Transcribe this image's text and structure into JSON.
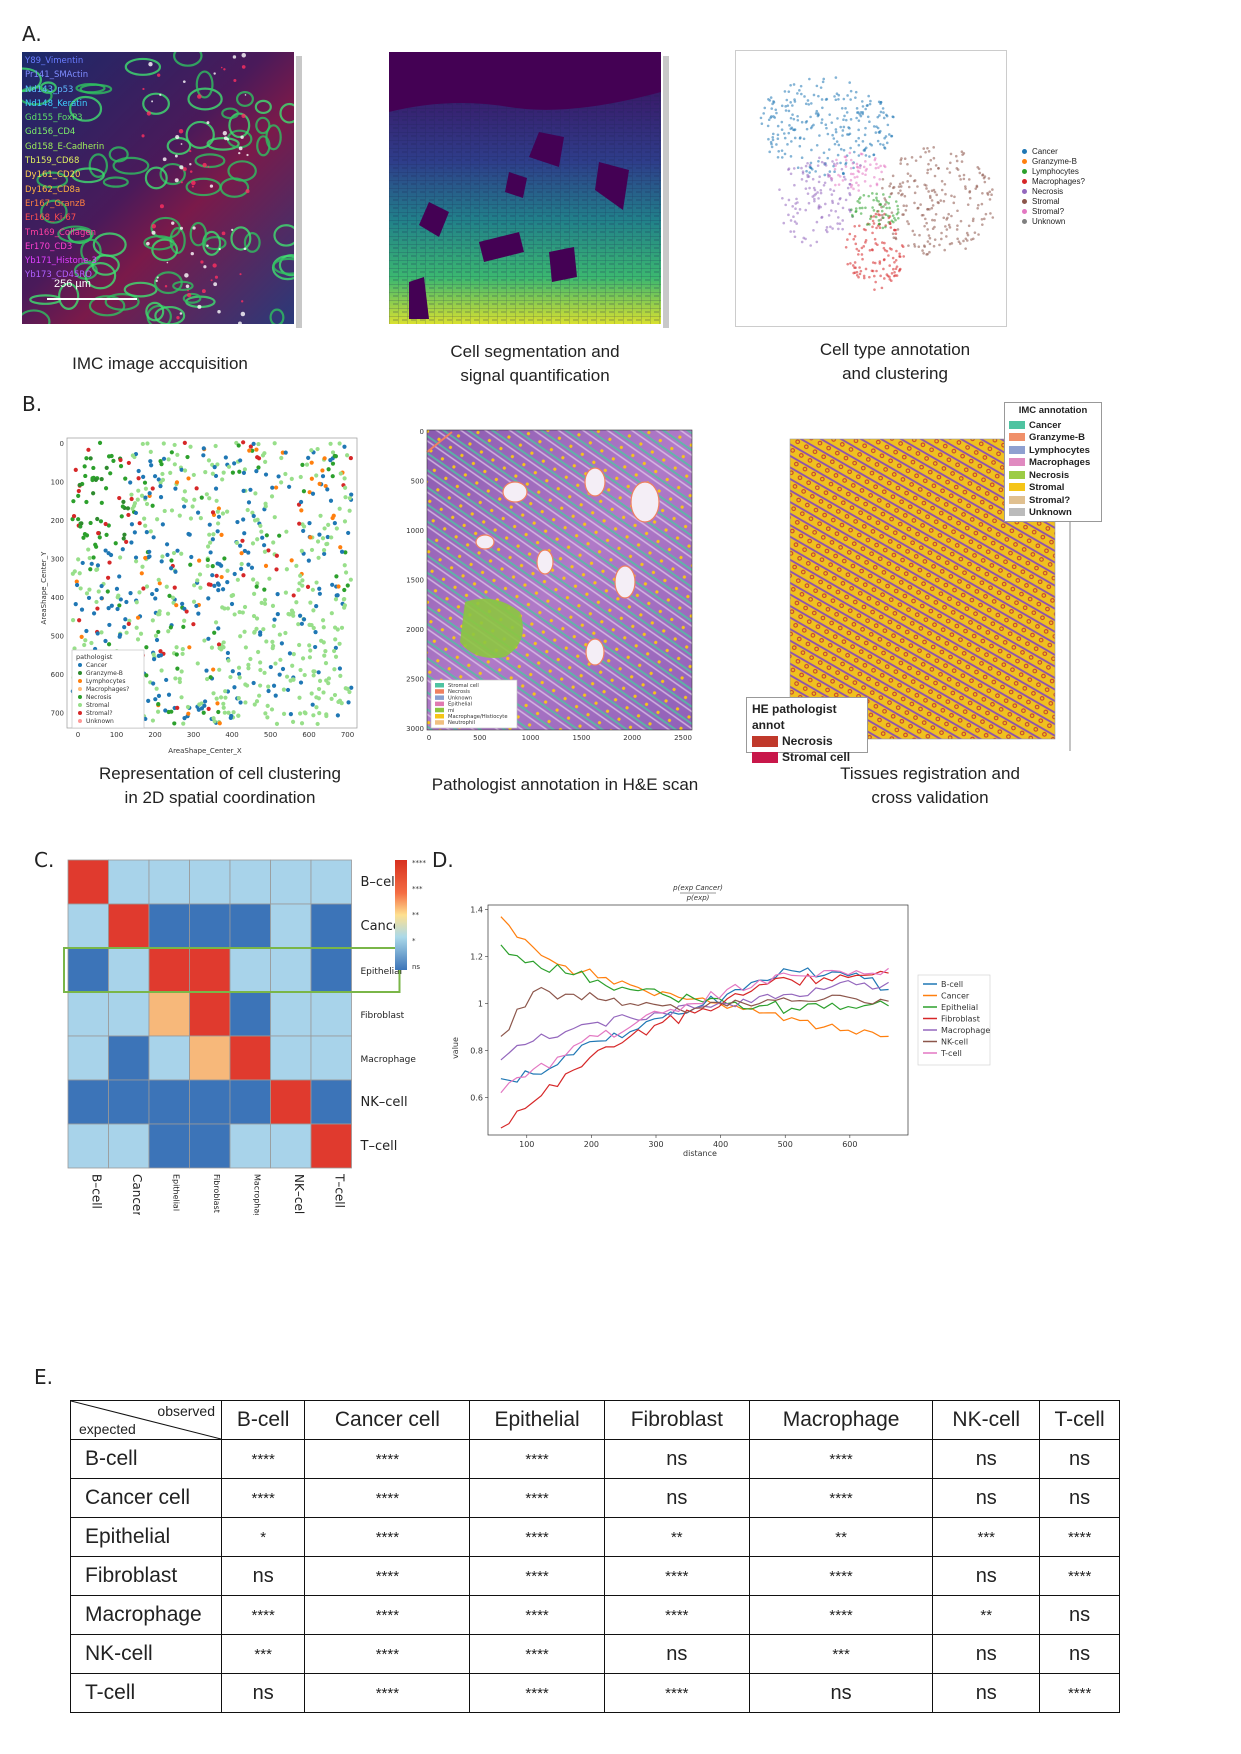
{
  "panel_labels": {
    "a": "A.",
    "b": "B.",
    "c": "C.",
    "d": "D.",
    "e": "E."
  },
  "captions": {
    "a1": "IMC image accquisition",
    "a2_l1": "Cell segmentation and",
    "a2_l2": "signal quantification",
    "a3_l1": "Cell type annotation",
    "a3_l2": "and clustering",
    "b1_l1": "Representation of cell clustering",
    "b1_l2": "in 2D spatial coordination",
    "b2": "Pathologist annotation in H&E scan",
    "b3_l1": "Tissues registration and",
    "b3_l2": "cross validation"
  },
  "imc_channels": [
    {
      "label": "Y89_Vimentin",
      "color": "#6a7cff"
    },
    {
      "label": "Pr141_SMActin",
      "color": "#7f8cff"
    },
    {
      "label": "Nd143_p53",
      "color": "#5fb8ff"
    },
    {
      "label": "Nd148_Keratin",
      "color": "#3fd0ff"
    },
    {
      "label": "Gd155_FoxP3",
      "color": "#5ee06a"
    },
    {
      "label": "Gd156_CD4",
      "color": "#7ef06a"
    },
    {
      "label": "Gd158_E-Cadherin",
      "color": "#9ef05a"
    },
    {
      "label": "Tb159_CD68",
      "color": "#e0f060"
    },
    {
      "label": "Dy161_CD20",
      "color": "#ffd050"
    },
    {
      "label": "Dy162_CD8a",
      "color": "#ffb040"
    },
    {
      "label": "Er167_GranzB",
      "color": "#ff8040"
    },
    {
      "label": "Er168_Ki-67",
      "color": "#ff5050"
    },
    {
      "label": "Tm169_Collagen",
      "color": "#ff40a0"
    },
    {
      "label": "Er170_CD3",
      "color": "#ff40d0"
    },
    {
      "label": "Yb171_Histone-3",
      "color": "#e040ff"
    },
    {
      "label": "Yb173_CD45RO",
      "color": "#b060ff"
    }
  ],
  "scale_bar": "256 µm",
  "umap_legend": [
    {
      "label": "Cancer",
      "color": "#1f77b4"
    },
    {
      "label": "Granzyme-B",
      "color": "#ff7f0e"
    },
    {
      "label": "Lymphocytes",
      "color": "#2ca02c"
    },
    {
      "label": "Macrophages?",
      "color": "#d62728"
    },
    {
      "label": "Necrosis",
      "color": "#9467bd"
    },
    {
      "label": "Stromal",
      "color": "#8c564b"
    },
    {
      "label": "Stromal?",
      "color": "#e377c2"
    },
    {
      "label": "Unknown",
      "color": "#7f7f7f"
    }
  ],
  "scatter": {
    "xlabel": "AreaShape_Center_X",
    "ylabel": "AreaShape_Center_Y",
    "xticks": [
      "0",
      "100",
      "200",
      "300",
      "400",
      "500",
      "600",
      "700"
    ],
    "yticks": [
      "0",
      "100",
      "200",
      "300",
      "400",
      "500",
      "600",
      "700"
    ],
    "legend_title": "pathologist",
    "legend": [
      {
        "label": "Cancer",
        "color": "#1f77b4"
      },
      {
        "label": "Granzyme-B",
        "color": "#2e8b2e"
      },
      {
        "label": "Lymphocytes",
        "color": "#ff7f0e"
      },
      {
        "label": "Macrophages?",
        "color": "#ffbb78"
      },
      {
        "label": "Necrosis",
        "color": "#2ca02c"
      },
      {
        "label": "Stromal",
        "color": "#98df8a"
      },
      {
        "label": "Stromal?",
        "color": "#d62728"
      },
      {
        "label": "Unknown",
        "color": "#ff9896"
      }
    ]
  },
  "he_scan": {
    "xticks": [
      "0",
      "500",
      "1000",
      "1500",
      "2000",
      "2500"
    ],
    "yticks": [
      "0",
      "500",
      "1000",
      "1500",
      "2000",
      "2500",
      "3000"
    ],
    "legend": [
      {
        "label": "Stromal cell",
        "color": "#4fc3a1"
      },
      {
        "label": "Necrosis",
        "color": "#f08060"
      },
      {
        "label": "Unknown",
        "color": "#8a9fd0"
      },
      {
        "label": "Epithelial",
        "color": "#e07ab0"
      },
      {
        "label": "mi",
        "color": "#8cc63f"
      },
      {
        "label": "Macrophage/Histiocyte",
        "color": "#f5c518"
      },
      {
        "label": "Neutrophil",
        "color": "#f0c080"
      }
    ]
  },
  "registration": {
    "imc_title": "IMC annotation",
    "imc_legend": [
      {
        "label": "Cancer",
        "color": "#4fc3a1"
      },
      {
        "label": "Granzyme-B",
        "color": "#f0906a"
      },
      {
        "label": "Lymphocytes",
        "color": "#8fa0d0"
      },
      {
        "label": "Macrophages",
        "color": "#e08ac0"
      },
      {
        "label": "Necrosis",
        "color": "#9ccc45"
      },
      {
        "label": "Stromal",
        "color": "#f5c518"
      },
      {
        "label": "Stromal?",
        "color": "#e0c090"
      },
      {
        "label": "Unknown",
        "color": "#bbbbbb"
      }
    ],
    "he_title": "HE pathologist annot",
    "he_legend": [
      {
        "label": "Necrosis",
        "color": "#c0392b"
      },
      {
        "label": "Stromal cell",
        "color": "#c8174a"
      }
    ]
  },
  "heatmap": {
    "rows": [
      "B–cell",
      "Cancer",
      "Epithelial",
      "Fibroblast",
      "Macrophage",
      "NK–cell",
      "T–cell"
    ],
    "cols": [
      "B–cell",
      "Cancer",
      "Epithelial",
      "Fibroblast",
      "Macrophage",
      "NK–cell",
      "T–cell"
    ],
    "cells": [
      [
        "red",
        "light",
        "light",
        "light",
        "light",
        "light",
        "light"
      ],
      [
        "light",
        "red",
        "dark",
        "dark",
        "dark",
        "light",
        "dark"
      ],
      [
        "dark",
        "light",
        "red",
        "red",
        "light",
        "light",
        "dark"
      ],
      [
        "light",
        "light",
        "orange",
        "red",
        "dark",
        "light",
        "light"
      ],
      [
        "light",
        "dark",
        "light",
        "orange",
        "red",
        "light",
        "light"
      ],
      [
        "dark",
        "dark",
        "dark",
        "dark",
        "dark",
        "red",
        "dark"
      ],
      [
        "light",
        "light",
        "dark",
        "dark",
        "light",
        "light",
        "red"
      ]
    ],
    "colors": {
      "red": "#e03a2e",
      "orange": "#f7b87a",
      "light": "#a8d3ea",
      "dark": "#3c74b8"
    },
    "colorbar_ticks": [
      "****",
      "***",
      "**",
      "*",
      "ns"
    ],
    "highlight_row": "Epithelial"
  },
  "line_chart": {
    "title_num": "p(exp Cancer)",
    "title_den": "p(exp)",
    "xlabel": "distance",
    "ylabel": "value",
    "xticks": [
      100,
      200,
      300,
      400,
      500,
      600
    ],
    "yticks": [
      0.6,
      0.8,
      1.0,
      1.2,
      1.4
    ],
    "xlim": [
      40,
      690
    ],
    "ylim": [
      0.44,
      1.42
    ]
  },
  "chart_data": {
    "type": "line",
    "title": "p(exp Cancer) / p(exp)",
    "xlabel": "distance",
    "ylabel": "value",
    "xlim": [
      40,
      690
    ],
    "ylim": [
      0.44,
      1.42
    ],
    "x": [
      60,
      110,
      160,
      210,
      260,
      310,
      360,
      410,
      460,
      510,
      560,
      610,
      660
    ],
    "series": [
      {
        "name": "B-cell",
        "color": "#1f77b4",
        "values": [
          0.68,
          0.7,
          0.78,
          0.84,
          0.88,
          0.94,
          0.98,
          1.04,
          1.1,
          1.14,
          1.12,
          1.13,
          1.06
        ]
      },
      {
        "name": "Cancer",
        "color": "#ff7f0e",
        "values": [
          1.37,
          1.24,
          1.16,
          1.11,
          1.08,
          1.05,
          1.02,
          0.98,
          0.96,
          0.94,
          0.9,
          0.87,
          0.86
        ]
      },
      {
        "name": "Epithelial",
        "color": "#2ca02c",
        "values": [
          1.25,
          1.18,
          1.13,
          1.1,
          1.06,
          1.04,
          1.02,
          1.0,
          0.99,
          0.98,
          0.98,
          0.98,
          0.99
        ]
      },
      {
        "name": "Fibroblast",
        "color": "#d62728",
        "values": [
          0.47,
          0.58,
          0.7,
          0.8,
          0.86,
          0.92,
          0.96,
          1.02,
          1.08,
          1.1,
          1.11,
          1.12,
          1.13
        ]
      },
      {
        "name": "Macrophage",
        "color": "#9467bd",
        "values": [
          0.76,
          0.84,
          0.88,
          0.92,
          0.94,
          0.96,
          0.98,
          1.0,
          1.03,
          1.04,
          1.06,
          1.08,
          1.09
        ]
      },
      {
        "name": "NK-cell",
        "color": "#8c564b",
        "values": [
          0.86,
          1.05,
          1.04,
          1.02,
          1.0,
          0.99,
          0.98,
          0.99,
          1.0,
          1.01,
          1.02,
          1.02,
          1.01
        ]
      },
      {
        "name": "T-cell",
        "color": "#e377c2",
        "values": [
          0.62,
          0.72,
          0.78,
          0.86,
          0.9,
          0.96,
          1.0,
          1.06,
          1.1,
          1.12,
          1.14,
          1.14,
          1.15
        ]
      }
    ]
  },
  "table": {
    "corner_observed": "observed",
    "corner_expected": "expected",
    "columns": [
      "B-cell",
      "Cancer cell",
      "Epithelial",
      "Fibroblast",
      "Macrophage",
      "NK-cell",
      "T-cell"
    ],
    "rows": [
      {
        "label": "B-cell",
        "values": [
          "****",
          "****",
          "****",
          "ns",
          "****",
          "ns",
          "ns"
        ]
      },
      {
        "label": "Cancer cell",
        "values": [
          "****",
          "****",
          "****",
          "ns",
          "****",
          "ns",
          "ns"
        ]
      },
      {
        "label": "Epithelial",
        "values": [
          "*",
          "****",
          "****",
          "**",
          "**",
          "***",
          "****"
        ]
      },
      {
        "label": "Fibroblast",
        "values": [
          "ns",
          "****",
          "****",
          "****",
          "****",
          "ns",
          "****"
        ]
      },
      {
        "label": "Macrophage",
        "values": [
          "****",
          "****",
          "****",
          "****",
          "****",
          "**",
          "ns"
        ]
      },
      {
        "label": "NK-cell",
        "values": [
          "***",
          "****",
          "****",
          "ns",
          "***",
          "ns",
          "ns"
        ]
      },
      {
        "label": "T-cell",
        "values": [
          "ns",
          "****",
          "****",
          "****",
          "ns",
          "ns",
          "****"
        ]
      }
    ]
  }
}
